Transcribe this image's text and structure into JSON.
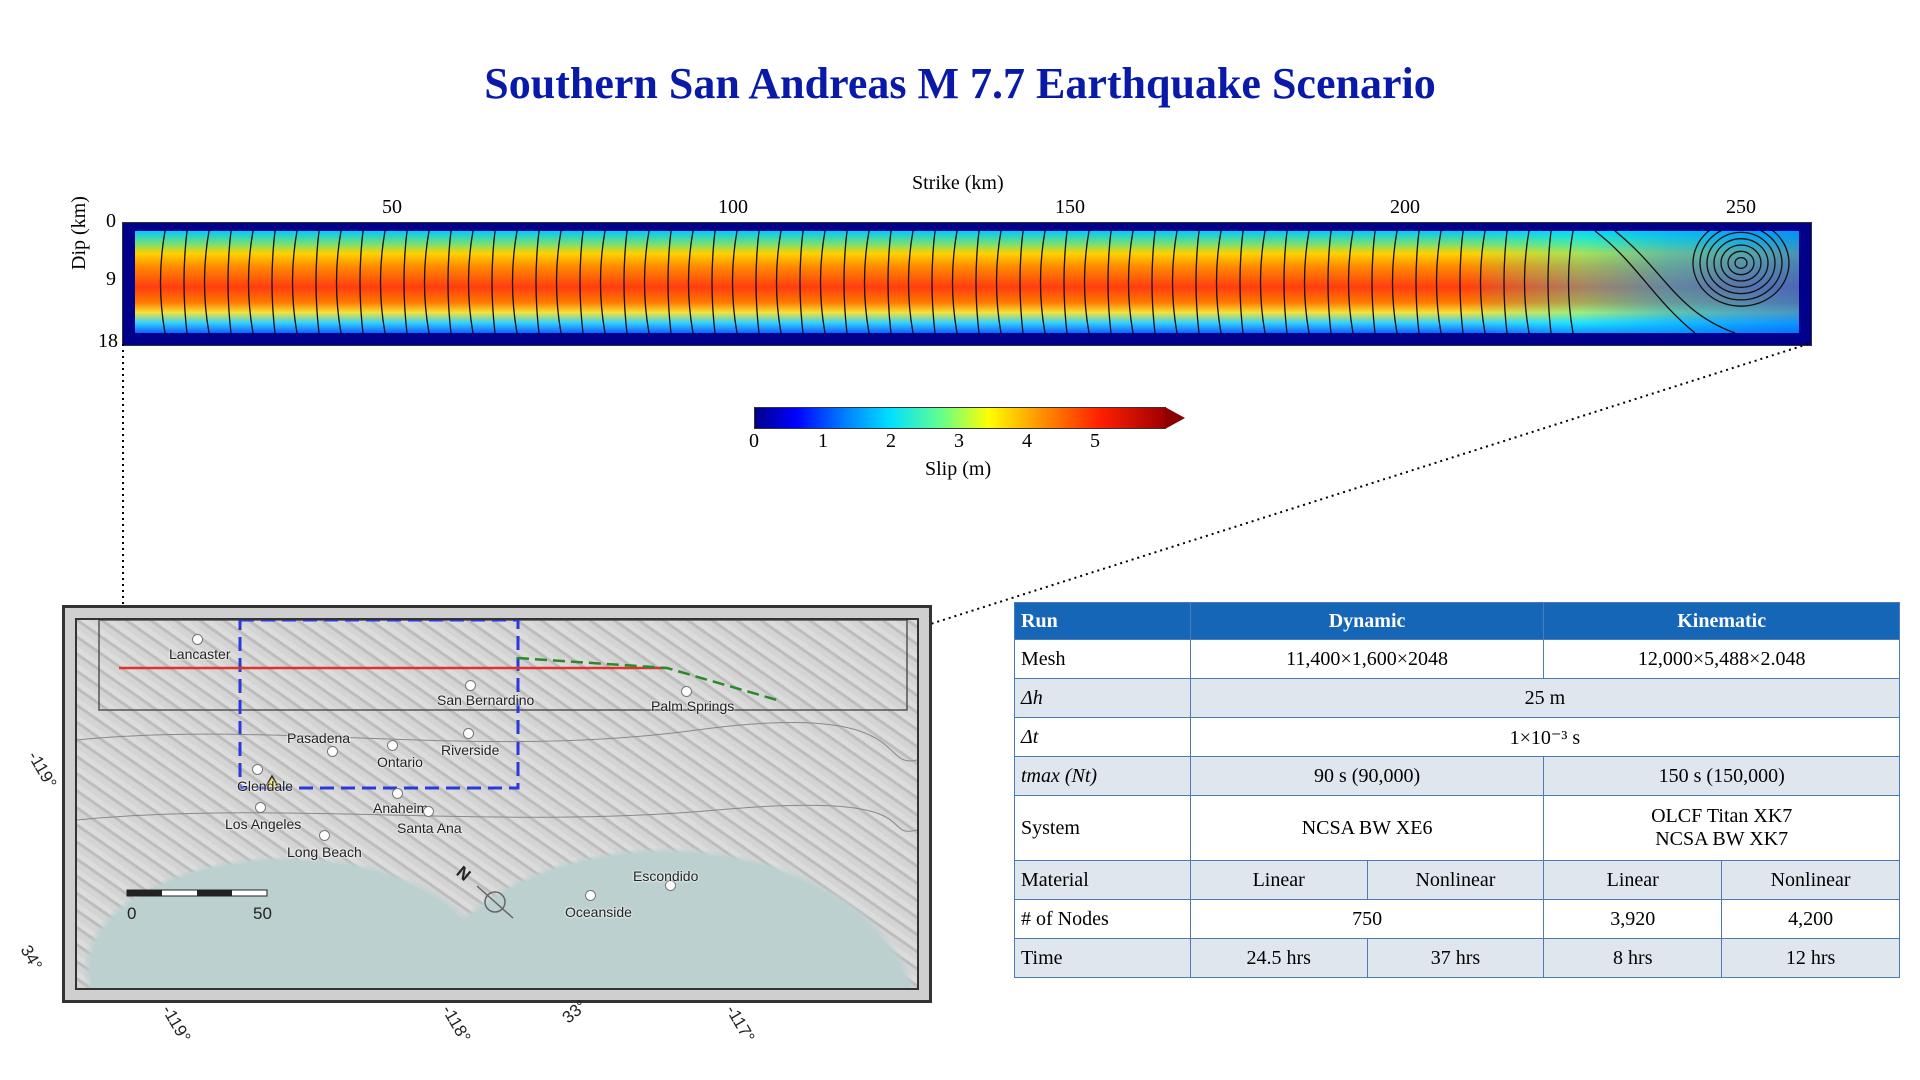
{
  "title": "Southern San Andreas M 7.7 Earthquake Scenario",
  "fault_plot": {
    "strike_label": "Strike (km)",
    "dip_label": "Dip (km)",
    "strike_ticks": [
      "50",
      "100",
      "150",
      "200",
      "250"
    ],
    "dip_ticks": [
      "0",
      "9",
      "18"
    ]
  },
  "colorbar": {
    "label": "Slip (m)",
    "ticks": [
      "0",
      "1",
      "2",
      "3",
      "4",
      "5"
    ],
    "colors": [
      "#00008b",
      "#0000ff",
      "#00e0ff",
      "#ffff00",
      "#ff2000",
      "#a00000"
    ]
  },
  "map": {
    "cities": [
      "Lancaster",
      "San Bernardino",
      "Palm Springs",
      "Pasadena",
      "Ontario",
      "Riverside",
      "Glendale",
      "Anaheim",
      "Los Angeles",
      "Santa Ana",
      "Long Beach",
      "Escondido",
      "Oceanside"
    ],
    "scale_start": "0",
    "scale_end": "50",
    "north_label": "N",
    "coords": [
      "-119°",
      "34°",
      "-119°",
      "-118°",
      "33°",
      "-117°"
    ]
  },
  "table": {
    "headers": [
      "Run",
      "Dynamic",
      "Kinematic"
    ],
    "mesh": {
      "label": "Mesh",
      "dynamic": "11,400×1,600×2048",
      "kinematic": "12,000×5,488×2.048"
    },
    "dh": {
      "label": "Δh",
      "value": "25 m"
    },
    "dt": {
      "label": "Δt",
      "value": "1×10⁻³ s"
    },
    "tmax": {
      "label": "tmax (Nt)",
      "dynamic": "90 s (90,000)",
      "kinematic": "150 s (150,000)"
    },
    "system": {
      "label": "System",
      "dynamic": "NCSA BW XE6",
      "kinematic_1": "OLCF Titan XK7",
      "kinematic_2": "NCSA BW XK7"
    },
    "material": {
      "label": "Material",
      "values": [
        "Linear",
        "Nonlinear",
        "Linear",
        "Nonlinear"
      ]
    },
    "nodes": {
      "label": "# of Nodes",
      "dynamic": "750",
      "kinematic_linear": "3,920",
      "kinematic_nonlinear": "4,200"
    },
    "time": {
      "label": "Time",
      "values": [
        "24.5 hrs",
        "37 hrs",
        "8 hrs",
        "12 hrs"
      ]
    }
  }
}
